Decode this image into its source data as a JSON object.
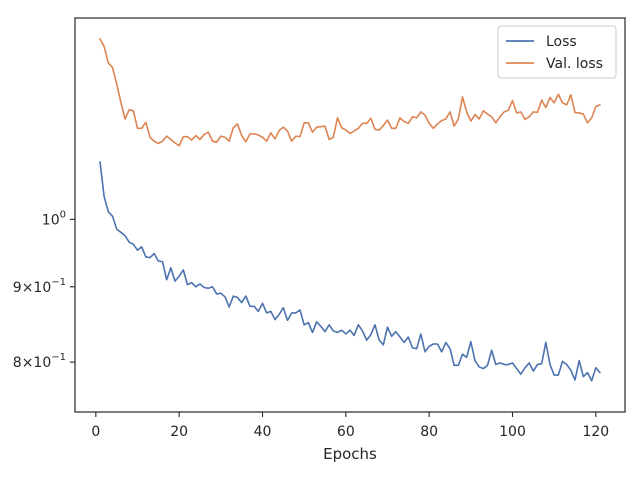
{
  "chart_data": {
    "type": "line",
    "title": "",
    "xlabel": "Epochs",
    "ylabel": "",
    "xlim": [
      -5,
      127
    ],
    "ylim": [
      0.74,
      1.37
    ],
    "yscale": "log",
    "grid": false,
    "legend_position": "top-right",
    "xticks": [
      0,
      20,
      40,
      60,
      80,
      100,
      120
    ],
    "xtick_labels": [
      "0",
      "20",
      "40",
      "60",
      "80",
      "100",
      "120"
    ],
    "yticks": [
      {
        "value": 1.0,
        "base": "10",
        "exp": "0"
      },
      {
        "value": 0.9,
        "mantissa": "9",
        "base": "10",
        "exp": "−1"
      },
      {
        "value": 0.8,
        "mantissa": "8",
        "base": "10",
        "exp": "−1"
      }
    ],
    "series": [
      {
        "name": "Loss",
        "color": "#4c72b0",
        "x": [
          1,
          2,
          3,
          4,
          5,
          6,
          7,
          8,
          9,
          10,
          11,
          12,
          13,
          14,
          15,
          16,
          17,
          18,
          19,
          20,
          21,
          22,
          23,
          24,
          25,
          26,
          27,
          28,
          29,
          30,
          31,
          32,
          33,
          34,
          35,
          36,
          37,
          38,
          39,
          40,
          41,
          42,
          43,
          44,
          45,
          46,
          47,
          48,
          49,
          50,
          51,
          52,
          53,
          54,
          55,
          56,
          57,
          58,
          59,
          60,
          61,
          62,
          63,
          64,
          65,
          66,
          67,
          68,
          69,
          70,
          71,
          72,
          73,
          74,
          75,
          76,
          77,
          78,
          79,
          80,
          81,
          82,
          83,
          84,
          85,
          86,
          87,
          88,
          89,
          90,
          91,
          92,
          93,
          94,
          95,
          96,
          97,
          98,
          99,
          100,
          101,
          102,
          103,
          104,
          105,
          106,
          107,
          108,
          109,
          110,
          111,
          112,
          113,
          114,
          115,
          116,
          117,
          118,
          119,
          120,
          121
        ],
        "values": [
          1.094,
          1.036,
          1.012,
          1.005,
          0.985,
          0.98,
          0.975,
          0.965,
          0.962,
          0.953,
          0.958,
          0.943,
          0.942,
          0.948,
          0.937,
          0.936,
          0.91,
          0.927,
          0.908,
          0.915,
          0.924,
          0.903,
          0.906,
          0.9,
          0.904,
          0.899,
          0.898,
          0.9,
          0.89,
          0.891,
          0.886,
          0.872,
          0.887,
          0.885,
          0.878,
          0.887,
          0.873,
          0.873,
          0.866,
          0.877,
          0.864,
          0.866,
          0.855,
          0.862,
          0.871,
          0.854,
          0.864,
          0.864,
          0.868,
          0.848,
          0.851,
          0.838,
          0.852,
          0.846,
          0.839,
          0.848,
          0.84,
          0.838,
          0.841,
          0.836,
          0.841,
          0.834,
          0.848,
          0.84,
          0.828,
          0.835,
          0.848,
          0.828,
          0.822,
          0.845,
          0.833,
          0.839,
          0.832,
          0.825,
          0.832,
          0.818,
          0.817,
          0.836,
          0.813,
          0.82,
          0.823,
          0.823,
          0.813,
          0.825,
          0.817,
          0.796,
          0.796,
          0.81,
          0.806,
          0.826,
          0.802,
          0.794,
          0.792,
          0.796,
          0.815,
          0.797,
          0.799,
          0.797,
          0.797,
          0.799,
          0.792,
          0.785,
          0.793,
          0.799,
          0.789,
          0.797,
          0.798,
          0.825,
          0.797,
          0.784,
          0.784,
          0.801,
          0.797,
          0.79,
          0.778,
          0.802,
          0.782,
          0.787,
          0.777,
          0.793,
          0.787
        ]
      },
      {
        "name": "Val. loss",
        "color": "#dd8452",
        "x": [
          1,
          2,
          3,
          4,
          5,
          6,
          7,
          8,
          9,
          10,
          11,
          12,
          13,
          14,
          15,
          16,
          17,
          18,
          19,
          20,
          21,
          22,
          23,
          24,
          25,
          26,
          27,
          28,
          29,
          30,
          31,
          32,
          33,
          34,
          35,
          36,
          37,
          38,
          39,
          40,
          41,
          42,
          43,
          44,
          45,
          46,
          47,
          48,
          49,
          50,
          51,
          52,
          53,
          54,
          55,
          56,
          57,
          58,
          59,
          60,
          61,
          62,
          63,
          64,
          65,
          66,
          67,
          68,
          69,
          70,
          71,
          72,
          73,
          74,
          75,
          76,
          77,
          78,
          79,
          80,
          81,
          82,
          83,
          84,
          85,
          86,
          87,
          88,
          89,
          90,
          91,
          92,
          93,
          94,
          95,
          96,
          97,
          98,
          99,
          100,
          101,
          102,
          103,
          104,
          105,
          106,
          107,
          108,
          109,
          110,
          111,
          112,
          113,
          114,
          115,
          116,
          117,
          118,
          119,
          120,
          121
        ],
        "values": [
          1.326,
          1.31,
          1.277,
          1.268,
          1.236,
          1.201,
          1.17,
          1.187,
          1.185,
          1.153,
          1.153,
          1.164,
          1.137,
          1.13,
          1.126,
          1.13,
          1.139,
          1.133,
          1.127,
          1.122,
          1.138,
          1.138,
          1.132,
          1.14,
          1.133,
          1.142,
          1.146,
          1.13,
          1.128,
          1.139,
          1.137,
          1.13,
          1.154,
          1.161,
          1.14,
          1.129,
          1.143,
          1.143,
          1.141,
          1.137,
          1.13,
          1.145,
          1.134,
          1.149,
          1.155,
          1.148,
          1.13,
          1.139,
          1.138,
          1.163,
          1.163,
          1.146,
          1.155,
          1.156,
          1.157,
          1.133,
          1.137,
          1.172,
          1.154,
          1.15,
          1.144,
          1.148,
          1.153,
          1.162,
          1.162,
          1.171,
          1.151,
          1.15,
          1.158,
          1.168,
          1.153,
          1.153,
          1.172,
          1.165,
          1.162,
          1.174,
          1.172,
          1.183,
          1.177,
          1.162,
          1.153,
          1.161,
          1.167,
          1.17,
          1.183,
          1.157,
          1.17,
          1.211,
          1.183,
          1.166,
          1.178,
          1.17,
          1.185,
          1.179,
          1.174,
          1.163,
          1.174,
          1.183,
          1.186,
          1.204,
          1.181,
          1.183,
          1.169,
          1.174,
          1.183,
          1.182,
          1.205,
          1.191,
          1.21,
          1.2,
          1.216,
          1.2,
          1.196,
          1.215,
          1.182,
          1.181,
          1.179,
          1.163,
          1.172,
          1.193,
          1.196
        ]
      }
    ]
  }
}
